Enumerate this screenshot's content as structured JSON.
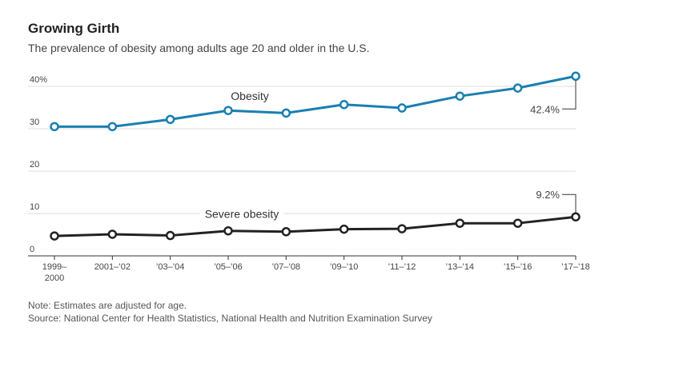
{
  "header": {
    "title": "Growing Girth",
    "subtitle": "The prevalence of obesity among adults age 20 and older in the U.S."
  },
  "notes": {
    "note": "Note: Estimates are adjusted for age.",
    "source": "Source: National Center for Health Statistics, National Health and Nutrition Examination Survey"
  },
  "chart_data": {
    "type": "line",
    "title": "Growing Girth",
    "subtitle": "The prevalence of obesity among adults age 20 and older in the U.S.",
    "categories": [
      [
        "1999–",
        "2000"
      ],
      [
        "2001–’02"
      ],
      [
        "’03–’04"
      ],
      [
        "’05–’06"
      ],
      [
        "’07–’08"
      ],
      [
        "’09–’10"
      ],
      [
        "’11–’12"
      ],
      [
        "’13–’14"
      ],
      [
        "’15–’16"
      ],
      [
        "’17–’18"
      ]
    ],
    "ylim": [
      0,
      40
    ],
    "yticks": [
      {
        "value": 0,
        "label": "0"
      },
      {
        "value": 10,
        "label": "10"
      },
      {
        "value": 20,
        "label": "20"
      },
      {
        "value": 30,
        "label": "30"
      },
      {
        "value": 40,
        "label": "40%"
      }
    ],
    "grid": true,
    "series": [
      {
        "name": "Obesity",
        "color": "#1a7fb0",
        "values": [
          30.5,
          30.5,
          32.2,
          34.3,
          33.7,
          35.7,
          34.9,
          37.7,
          39.6,
          42.4
        ],
        "end_label": "42.4%"
      },
      {
        "name": "Severe obesity",
        "color": "#222222",
        "values": [
          4.7,
          5.1,
          4.8,
          5.9,
          5.7,
          6.3,
          6.4,
          7.7,
          7.7,
          9.2
        ],
        "end_label": "9.2%"
      }
    ]
  }
}
